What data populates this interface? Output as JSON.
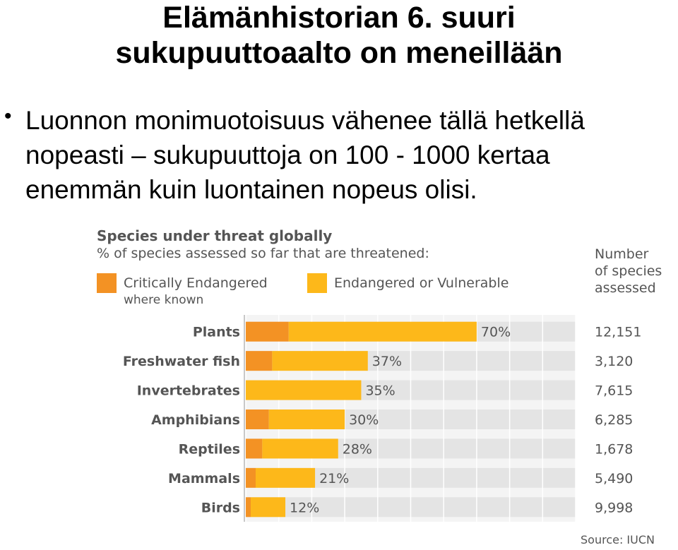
{
  "slide": {
    "title_line1": "Elämänhistorian 6. suuri",
    "title_line2": "sukupuuttoaalto on meneillään",
    "bullet": "•",
    "bullet_text": "Luonnon monimuotoisuus vähenee tällä hetkellä nopeasti – sukupuuttoja on 100 - 1000 kertaa enemmän kuin luontainen nopeus olisi."
  },
  "chart_data": {
    "type": "bar",
    "orientation": "horizontal",
    "stacked": true,
    "title": "Species under threat globally",
    "subtitle": "% of species assessed so far that are threatened:",
    "categories": [
      "Plants",
      "Freshwater fish",
      "Invertebrates",
      "Amphibians",
      "Reptiles",
      "Mammals",
      "Birds"
    ],
    "series": [
      {
        "name": "Critically Endangered",
        "name_note": "where known",
        "values": [
          13,
          8,
          0,
          7,
          5,
          3,
          1.5
        ],
        "color": "#f39224"
      },
      {
        "name": "Endangered or Vulnerable",
        "values": [
          57,
          29,
          35,
          23,
          23,
          18,
          10.5
        ],
        "color": "#fdb81a"
      }
    ],
    "totals_labels": [
      "70%",
      "37%",
      "35%",
      "30%",
      "28%",
      "21%",
      "12%"
    ],
    "totals": [
      70,
      37,
      35,
      30,
      28,
      21,
      12
    ],
    "column_header": "Number\nof species\nassessed",
    "species_assessed": [
      "12,151",
      "3,120",
      "7,615",
      "6,285",
      "1,678",
      "5,490",
      "9,998"
    ],
    "xlim": [
      0,
      100
    ],
    "grid": true,
    "track_color": "#e4e4e4",
    "source": "Source: IUCN"
  }
}
